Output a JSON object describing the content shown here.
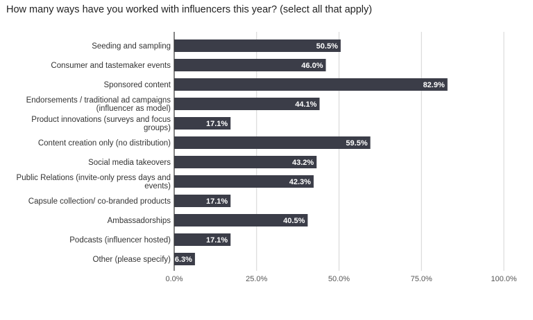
{
  "chart_data": {
    "type": "bar",
    "orientation": "horizontal",
    "title": "How many ways have you worked with influencers this year? (select all that apply)",
    "categories": [
      [
        "Seeding and sampling"
      ],
      [
        "Consumer and tastemaker events"
      ],
      [
        "Sponsored content"
      ],
      [
        "Endorsements / traditional ad campaigns",
        "(influencer as model)"
      ],
      [
        "Product innovations (surveys and focus",
        "groups)"
      ],
      [
        "Content creation only (no distribution)"
      ],
      [
        "Social media takeovers"
      ],
      [
        "Public Relations (invite-only press days and",
        "events)"
      ],
      [
        "Capsule collection/ co-branded products"
      ],
      [
        "Ambassadorships"
      ],
      [
        "Podcasts (influencer hosted)"
      ],
      [
        "Other (please specify)"
      ]
    ],
    "values": [
      50.5,
      46.0,
      82.9,
      44.1,
      17.1,
      59.5,
      43.2,
      42.3,
      17.1,
      40.5,
      17.1,
      6.3
    ],
    "value_labels": [
      "50.5%",
      "46.0%",
      "82.9%",
      "44.1%",
      "17.1%",
      "59.5%",
      "43.2%",
      "42.3%",
      "17.1%",
      "40.5%",
      "17.1%",
      "6.3%"
    ],
    "xlim": [
      0,
      100
    ],
    "xticks": [
      0,
      25,
      50,
      75,
      100
    ],
    "xtick_labels": [
      "0.0%",
      "25.0%",
      "50.0%",
      "75.0%",
      "100.0%"
    ],
    "xlabel": "",
    "ylabel": "",
    "grid": true,
    "legend": "none",
    "colors": {
      "bar": "#3b3d48",
      "grid": "#d4d4d4",
      "axis": "#333333"
    }
  }
}
